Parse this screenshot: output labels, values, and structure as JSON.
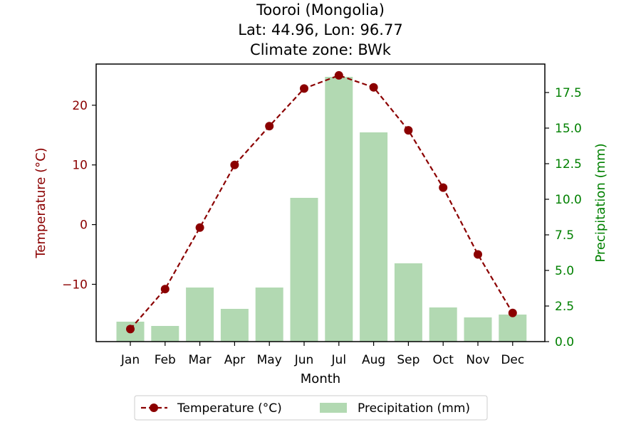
{
  "chart_data": {
    "type": "bar+line",
    "title_lines": [
      "Tooroi (Mongolia)",
      "Lat: 44.96, Lon: 96.77",
      "Climate zone: BWk"
    ],
    "xlabel": "Month",
    "categories": [
      "Jan",
      "Feb",
      "Mar",
      "Apr",
      "May",
      "Jun",
      "Jul",
      "Aug",
      "Sep",
      "Oct",
      "Nov",
      "Dec"
    ],
    "temperature": {
      "name": "Temperature (°C)",
      "axis_label": "Temperature (°C)",
      "values": [
        -17.5,
        -10.8,
        -0.5,
        10.0,
        16.5,
        22.8,
        25.0,
        23.0,
        15.8,
        6.2,
        -5.0,
        -14.8
      ],
      "ylim": [
        -19.6,
        26.9
      ],
      "ticks": [
        20,
        10,
        0,
        -10
      ],
      "tick_labels": [
        "20",
        "10",
        "0",
        "−10"
      ],
      "color": "#8b0000",
      "line_style": "dashed",
      "marker": "circle"
    },
    "precipitation": {
      "name": "Precipitation (mm)",
      "axis_label": "Precipitation (mm)",
      "values": [
        1.4,
        1.1,
        3.8,
        2.3,
        3.8,
        10.1,
        18.6,
        14.7,
        5.5,
        2.4,
        1.7,
        1.9
      ],
      "ylim": [
        0,
        19.5
      ],
      "ticks": [
        0,
        2.5,
        5,
        7.5,
        10,
        12.5,
        15,
        17.5
      ],
      "tick_labels": [
        "0.0",
        "2.5",
        "5.0",
        "7.5",
        "10.0",
        "12.5",
        "15.0",
        "17.5"
      ],
      "color": "#008000",
      "bar_color": "#b2d9b2"
    },
    "grid": false,
    "legend_position": "bottom-center"
  }
}
